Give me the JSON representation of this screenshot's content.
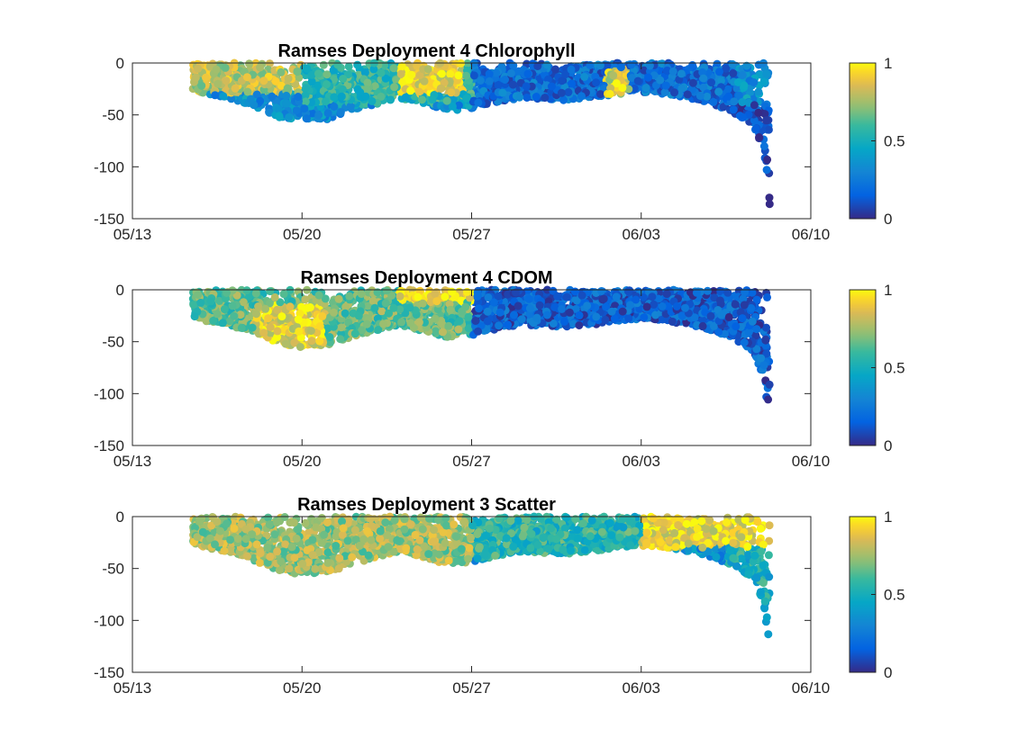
{
  "chart_data": [
    {
      "type": "scatter",
      "title": "Ramses Deployment 4 Chlorophyll",
      "xlabel": "",
      "ylabel": "",
      "x_ticks": [
        "05/13",
        "05/20",
        "05/27",
        "06/03",
        "06/10"
      ],
      "y_ticks": [
        0,
        -50,
        -100,
        -150
      ],
      "xlim": [
        "2021-05-13",
        "2021-06-10"
      ],
      "ylim": [
        -150,
        0
      ],
      "colorbar": {
        "ticks": [
          0,
          0.5,
          1
        ],
        "range": [
          0,
          1
        ],
        "colormap": "parula"
      },
      "profile": {
        "start_day": 2.5,
        "end_day": 26.3,
        "bottom_depth": [
          [
            2.5,
            -25
          ],
          [
            3,
            -30
          ],
          [
            4,
            -34
          ],
          [
            5,
            -42
          ],
          [
            6,
            -52
          ],
          [
            7,
            -56
          ],
          [
            8,
            -55
          ],
          [
            9,
            -46
          ],
          [
            10,
            -40
          ],
          [
            11,
            -34
          ],
          [
            12,
            -40
          ],
          [
            13,
            -46
          ],
          [
            14,
            -44
          ],
          [
            15,
            -38
          ],
          [
            16,
            -34
          ],
          [
            17,
            -35
          ],
          [
            18,
            -36
          ],
          [
            19,
            -34
          ],
          [
            20,
            -30
          ],
          [
            21,
            -28
          ],
          [
            22,
            -30
          ],
          [
            23,
            -34
          ],
          [
            24,
            -40
          ],
          [
            25,
            -50
          ],
          [
            25.6,
            -60
          ],
          [
            26,
            -80
          ],
          [
            26.2,
            -110
          ],
          [
            26.3,
            -136
          ]
        ]
      },
      "color_zones": [
        {
          "days": [
            2.5,
            7
          ],
          "depths": [
            0,
            -30
          ],
          "value": 0.8
        },
        {
          "days": [
            7,
            14
          ],
          "depths": [
            0,
            -40
          ],
          "value": 0.55
        },
        {
          "days": [
            11,
            13.7
          ],
          "depths": [
            0,
            -30
          ],
          "value": 0.9
        },
        {
          "days": [
            14,
            25
          ],
          "depths": [
            0,
            -45
          ],
          "value": 0.2
        },
        {
          "days": [
            19.5,
            20.5
          ],
          "depths": [
            -5,
            -30
          ],
          "value": 0.85
        },
        {
          "days": [
            24,
            26.3
          ],
          "depths": [
            -40,
            -140
          ],
          "value": 0.1
        }
      ]
    },
    {
      "type": "scatter",
      "title": "Ramses Deployment 4 CDOM",
      "xlabel": "",
      "ylabel": "",
      "x_ticks": [
        "05/13",
        "05/20",
        "05/27",
        "06/03",
        "06/10"
      ],
      "y_ticks": [
        0,
        -50,
        -100,
        -150
      ],
      "xlim": [
        "2021-05-13",
        "2021-06-10"
      ],
      "ylim": [
        -150,
        0
      ],
      "colorbar": {
        "ticks": [
          0,
          0.5,
          1
        ],
        "range": [
          0,
          1
        ],
        "colormap": "parula"
      },
      "profile": {
        "start_day": 2.5,
        "end_day": 26.3,
        "bottom_depth": [
          [
            2.5,
            -25
          ],
          [
            3,
            -30
          ],
          [
            4,
            -34
          ],
          [
            5,
            -42
          ],
          [
            6,
            -52
          ],
          [
            7,
            -56
          ],
          [
            8,
            -55
          ],
          [
            9,
            -46
          ],
          [
            10,
            -40
          ],
          [
            11,
            -34
          ],
          [
            12,
            -40
          ],
          [
            13,
            -46
          ],
          [
            14,
            -44
          ],
          [
            15,
            -38
          ],
          [
            16,
            -34
          ],
          [
            17,
            -35
          ],
          [
            18,
            -36
          ],
          [
            19,
            -34
          ],
          [
            20,
            -30
          ],
          [
            21,
            -28
          ],
          [
            22,
            -30
          ],
          [
            23,
            -34
          ],
          [
            24,
            -40
          ],
          [
            25,
            -50
          ],
          [
            25.6,
            -60
          ],
          [
            26,
            -80
          ],
          [
            26.2,
            -110
          ],
          [
            26.3,
            -136
          ]
        ]
      },
      "color_zones": [
        {
          "days": [
            2.5,
            14
          ],
          "depths": [
            0,
            -60
          ],
          "value": 0.65
        },
        {
          "days": [
            5,
            8
          ],
          "depths": [
            -15,
            -55
          ],
          "value": 0.9
        },
        {
          "days": [
            11,
            14
          ],
          "depths": [
            0,
            -12
          ],
          "value": 0.95
        },
        {
          "days": [
            14,
            26.3
          ],
          "depths": [
            0,
            -140
          ],
          "value": 0.15
        }
      ]
    },
    {
      "type": "scatter",
      "title": "Ramses Deployment 3 Scatter",
      "xlabel": "",
      "ylabel": "",
      "x_ticks": [
        "05/13",
        "05/20",
        "05/27",
        "06/03",
        "06/10"
      ],
      "y_ticks": [
        0,
        -50,
        -100,
        -150
      ],
      "xlim": [
        "2021-05-13",
        "2021-06-10"
      ],
      "ylim": [
        -150,
        0
      ],
      "colorbar": {
        "ticks": [
          0,
          0.5,
          1
        ],
        "range": [
          0,
          1
        ],
        "colormap": "parula"
      },
      "profile": {
        "start_day": 2.5,
        "end_day": 26.3,
        "bottom_depth": [
          [
            2.5,
            -25
          ],
          [
            3,
            -30
          ],
          [
            4,
            -34
          ],
          [
            5,
            -42
          ],
          [
            6,
            -52
          ],
          [
            7,
            -56
          ],
          [
            8,
            -55
          ],
          [
            9,
            -46
          ],
          [
            10,
            -40
          ],
          [
            11,
            -34
          ],
          [
            12,
            -40
          ],
          [
            13,
            -46
          ],
          [
            14,
            -44
          ],
          [
            15,
            -38
          ],
          [
            16,
            -34
          ],
          [
            17,
            -35
          ],
          [
            18,
            -36
          ],
          [
            19,
            -34
          ],
          [
            20,
            -30
          ],
          [
            21,
            -28
          ],
          [
            22,
            -30
          ],
          [
            23,
            -34
          ],
          [
            24,
            -40
          ],
          [
            25,
            -50
          ],
          [
            25.6,
            -60
          ],
          [
            26,
            -80
          ],
          [
            26.2,
            -110
          ],
          [
            26.3,
            -136
          ]
        ]
      },
      "color_zones": [
        {
          "days": [
            2.5,
            14
          ],
          "depths": [
            0,
            -55
          ],
          "value": 0.75
        },
        {
          "days": [
            14,
            21
          ],
          "depths": [
            0,
            -40
          ],
          "value": 0.55
        },
        {
          "days": [
            21,
            26.3
          ],
          "depths": [
            0,
            -30
          ],
          "value": 0.9
        },
        {
          "days": [
            24.5,
            26.3
          ],
          "depths": [
            -30,
            -140
          ],
          "value": 0.5
        }
      ]
    }
  ]
}
